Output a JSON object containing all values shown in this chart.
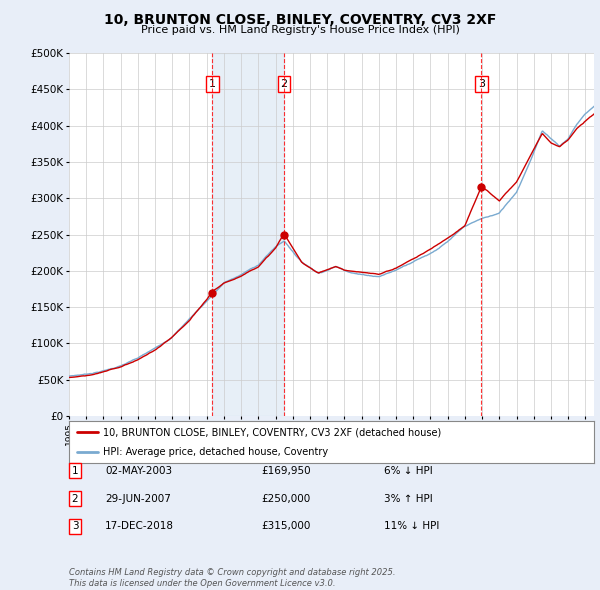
{
  "title": "10, BRUNTON CLOSE, BINLEY, COVENTRY, CV3 2XF",
  "subtitle": "Price paid vs. HM Land Registry's House Price Index (HPI)",
  "ylabel_ticks": [
    "£0",
    "£50K",
    "£100K",
    "£150K",
    "£200K",
    "£250K",
    "£300K",
    "£350K",
    "£400K",
    "£450K",
    "£500K"
  ],
  "ytick_values": [
    0,
    50000,
    100000,
    150000,
    200000,
    250000,
    300000,
    350000,
    400000,
    450000,
    500000
  ],
  "ylim": [
    0,
    500000
  ],
  "xlim_start": 1995.0,
  "xlim_end": 2025.5,
  "hpi_color": "#7aaad0",
  "price_color": "#cc0000",
  "purchase_dates": [
    2003.33,
    2007.49,
    2018.96
  ],
  "purchase_prices": [
    169950,
    250000,
    315000
  ],
  "purchase_labels": [
    "1",
    "2",
    "3"
  ],
  "legend_price_label": "10, BRUNTON CLOSE, BINLEY, COVENTRY, CV3 2XF (detached house)",
  "legend_hpi_label": "HPI: Average price, detached house, Coventry",
  "table_entries": [
    {
      "num": "1",
      "date": "02-MAY-2003",
      "price": "£169,950",
      "note": "6% ↓ HPI"
    },
    {
      "num": "2",
      "date": "29-JUN-2007",
      "price": "£250,000",
      "note": "3% ↑ HPI"
    },
    {
      "num": "3",
      "date": "17-DEC-2018",
      "price": "£315,000",
      "note": "11% ↓ HPI"
    }
  ],
  "footnote": "Contains HM Land Registry data © Crown copyright and database right 2025.\nThis data is licensed under the Open Government Licence v3.0.",
  "background_color": "#e8eef8",
  "plot_bg_color": "#ffffff",
  "shade_color": "#d0e0f0"
}
